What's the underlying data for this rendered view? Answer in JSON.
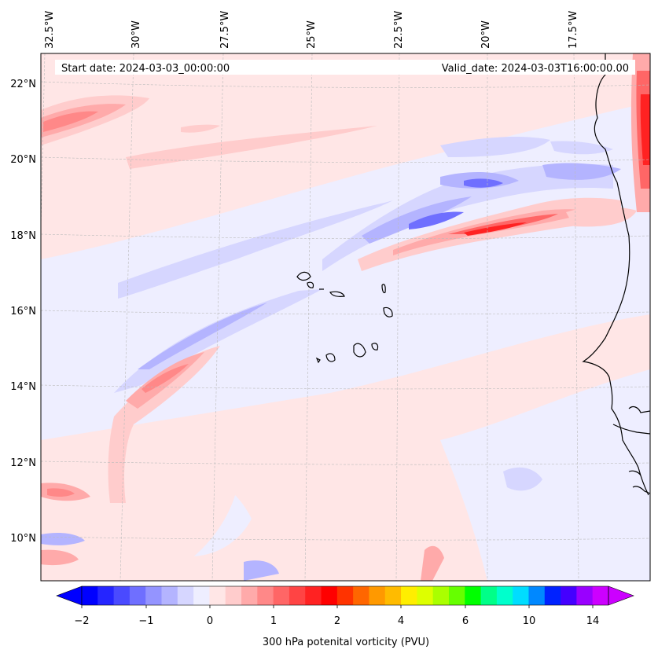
{
  "header": {
    "start_date": "Start date: 2024-03-03_00:00:00",
    "valid_date": "Valid_date: 2024-03-03T16:00:00.00"
  },
  "axes": {
    "lon_labels": [
      "32.5°W",
      "30°W",
      "27.5°W",
      "25°W",
      "22.5°W",
      "20°W",
      "17.5°W"
    ],
    "lat_labels": [
      "22°N",
      "20°N",
      "18°N",
      "16°N",
      "14°N",
      "12°N",
      "10°N"
    ]
  },
  "colorbar": {
    "title": "300 hPa potenital vorticity (PVU)",
    "tick_labels": [
      "−2",
      "−1",
      "0",
      "1",
      "2",
      "4",
      "6",
      "10",
      "14"
    ],
    "colors": [
      "#0000ff",
      "#2525ff",
      "#4a4aff",
      "#6f6fff",
      "#9494ff",
      "#b4b4ff",
      "#d6d6ff",
      "#eeeeff",
      "#ffe6e6",
      "#ffcccc",
      "#ffaaaa",
      "#ff8888",
      "#ff6666",
      "#ff4444",
      "#ff2222",
      "#ff0000",
      "#ff3300",
      "#ff6600",
      "#ff9900",
      "#ffbb00",
      "#ffee00",
      "#ddff00",
      "#aaff00",
      "#66ff00",
      "#00ff00",
      "#00ff88",
      "#00ffcc",
      "#00ddff",
      "#0088ff",
      "#0022ff",
      "#4400ff",
      "#9900ff",
      "#cc00ff"
    ]
  },
  "map": {
    "region": "Eastern tropical North Atlantic, Cape Verde Islands, West African coast",
    "colors": {
      "background": "#ffe6e6",
      "light_neg": "#eeeeff",
      "neg1": "#d6d6ff",
      "neg2": "#b4b4ff",
      "neg3": "#6f6fff",
      "pos1": "#ffcccc",
      "pos2": "#ffaaaa",
      "pos3": "#ff6666",
      "pos4": "#ff2222"
    }
  }
}
